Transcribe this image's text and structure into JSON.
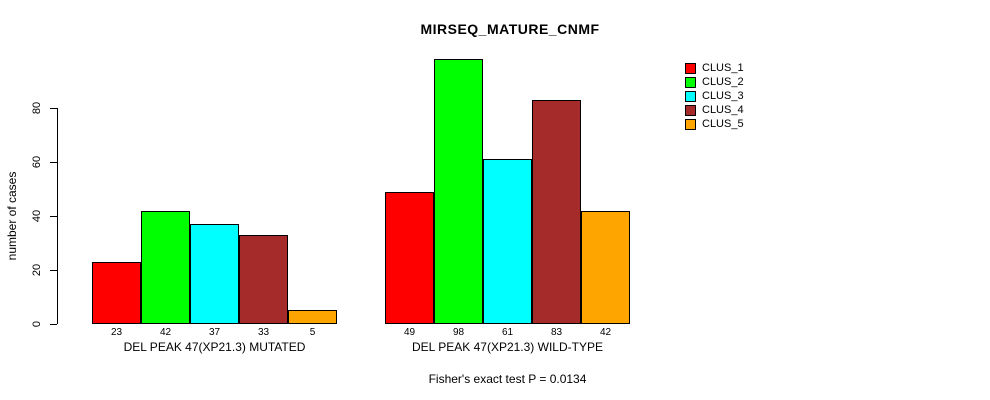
{
  "chart_data": {
    "type": "bar",
    "title": "MIRSEQ_MATURE_CNMF",
    "ylabel": "number of cases",
    "xlabel": "",
    "footer": "Fisher's exact test P = 0.0134",
    "ylim": [
      0,
      80
    ],
    "yticks": [
      0,
      20,
      40,
      60,
      80
    ],
    "grid": false,
    "bar_value_labels_shown": true,
    "legend": {
      "position": "top-right",
      "entries": [
        {
          "label": "CLUS_1",
          "color": "#FF0000"
        },
        {
          "label": "CLUS_2",
          "color": "#00FF00"
        },
        {
          "label": "CLUS_3",
          "color": "#00FFFF"
        },
        {
          "label": "CLUS_4",
          "color": "#A52A2A"
        },
        {
          "label": "CLUS_5",
          "color": "#FFA500"
        }
      ]
    },
    "series_colors": [
      "#FF0000",
      "#00FF00",
      "#00FFFF",
      "#A52A2A",
      "#FFA500"
    ],
    "groups": [
      {
        "label": "DEL PEAK 47(XP21.3) MUTATED",
        "values": [
          23,
          42,
          37,
          33,
          5
        ]
      },
      {
        "label": "DEL PEAK 47(XP21.3) WILD-TYPE",
        "values": [
          49,
          98,
          61,
          83,
          42
        ]
      }
    ],
    "axis_color": "#000000",
    "bar_border_color": "#000000"
  }
}
